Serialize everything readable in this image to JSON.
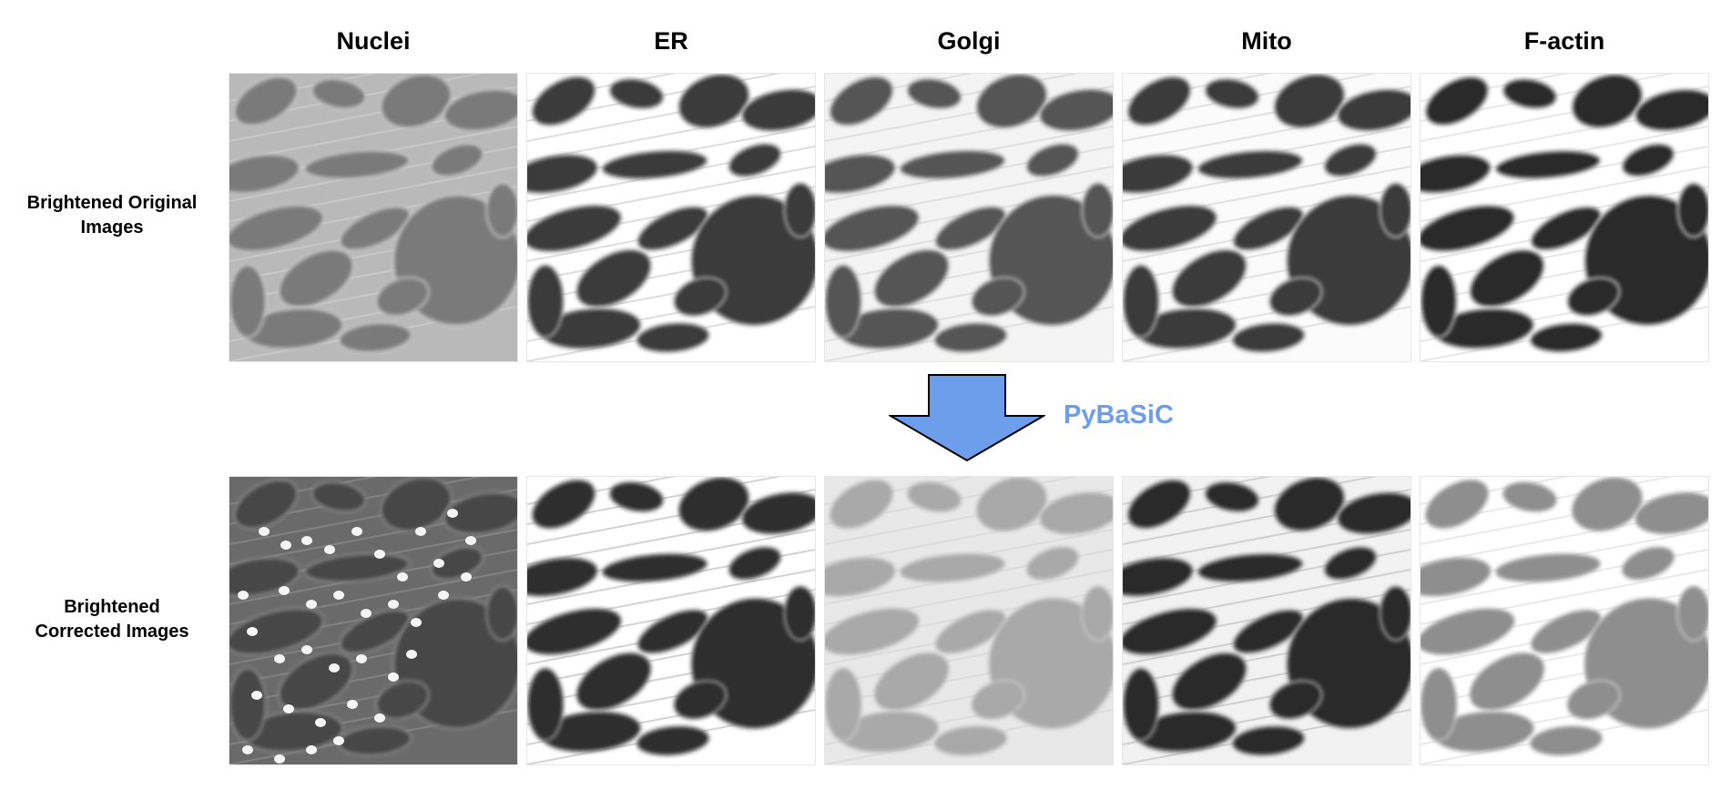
{
  "columns": [
    "Nuclei",
    "ER",
    "Golgi",
    "Mito",
    "F-actin"
  ],
  "rows": [
    {
      "label_lines": [
        "Brightened Original",
        "Images"
      ],
      "panel_images": [
        "nuclei-original-image",
        "er-original-image",
        "golgi-original-image",
        "mito-original-image",
        "f-actin-original-image"
      ]
    },
    {
      "label_lines": [
        "Brightened",
        "Corrected Images"
      ],
      "panel_images": [
        "nuclei-corrected-image",
        "er-corrected-image",
        "golgi-corrected-image",
        "mito-corrected-image",
        "f-actin-corrected-image"
      ]
    }
  ],
  "method": {
    "label": "PyBaSiC",
    "color": "#6d9eeb",
    "arrow_fill": "#6d9eeb",
    "arrow_stroke": "#000000",
    "arrow_direction": "down"
  },
  "panel_style": {
    "original": {
      "Nuclei": {
        "bg": "#b9b9b9",
        "cell": "#7a7a7a",
        "edge": "#d8d8d8",
        "spots": false
      },
      "ER": {
        "bg": "#ffffff",
        "cell": "#3a3a3a",
        "edge": "#bdbdbd",
        "spots": false
      },
      "Golgi": {
        "bg": "#f4f4f4",
        "cell": "#555555",
        "edge": "#cccccc",
        "spots": false
      },
      "Mito": {
        "bg": "#fbfbfb",
        "cell": "#3b3b3b",
        "edge": "#c8c8c8",
        "spots": false
      },
      "F-actin": {
        "bg": "#ffffff",
        "cell": "#2c2c2c",
        "edge": "#d0d0d0",
        "spots": false
      }
    },
    "corrected": {
      "Nuclei": {
        "bg": "#6a6a6a",
        "cell": "#474747",
        "edge": "#9a9a9a",
        "spots": true
      },
      "ER": {
        "bg": "#ffffff",
        "cell": "#2d2d2d",
        "edge": "#a8a8a8",
        "spots": false
      },
      "Golgi": {
        "bg": "#e8e8e8",
        "cell": "#a9a9a9",
        "edge": "#d2d2d2",
        "spots": false
      },
      "Mito": {
        "bg": "#f2f2f2",
        "cell": "#2b2b2b",
        "edge": "#b0b0b0",
        "spots": false
      },
      "F-actin": {
        "bg": "#ffffff",
        "cell": "#8e8e8e",
        "edge": "#d4d4d4",
        "spots": false
      }
    }
  }
}
